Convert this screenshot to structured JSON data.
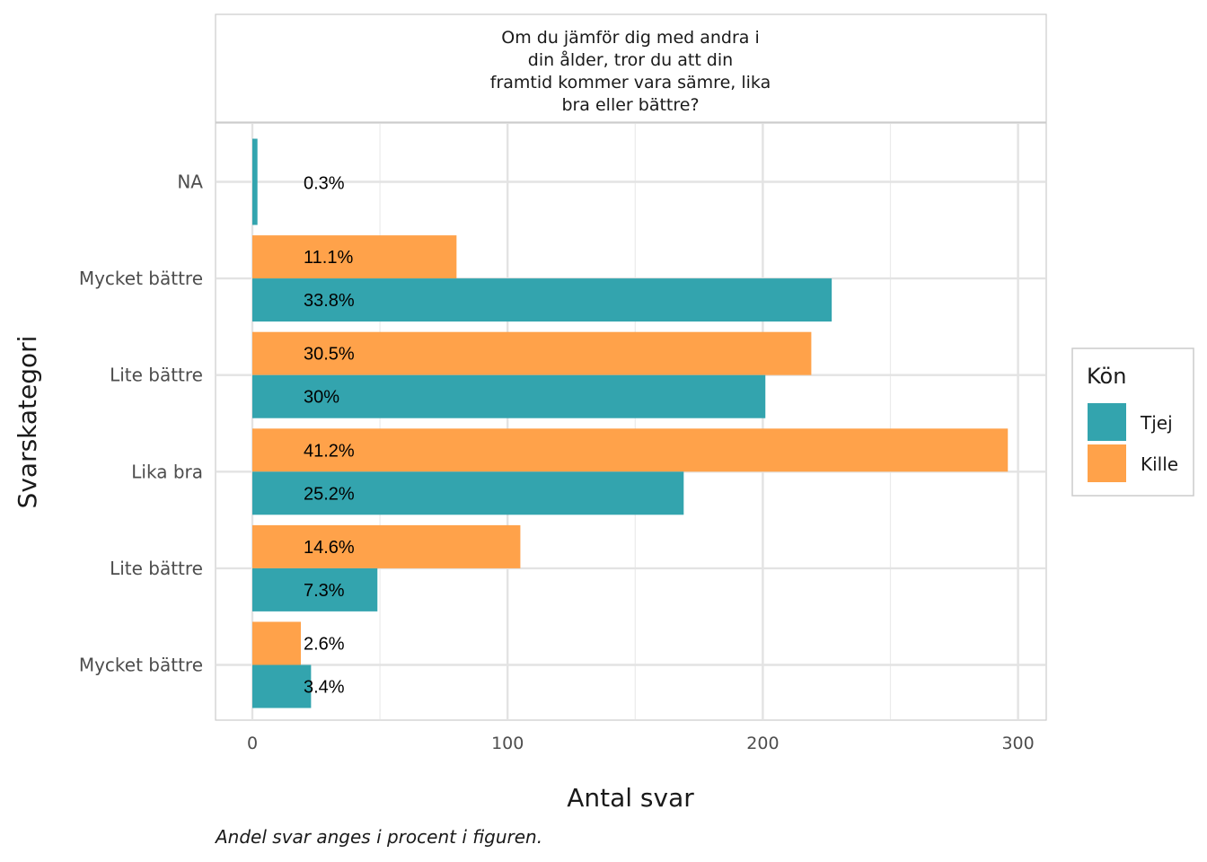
{
  "chart_data": {
    "type": "bar",
    "orientation": "horizontal",
    "facet_title": [
      "Om du jämför dig med andra i",
      "din ålder, tror du att din",
      "framtid kommer vara sämre, lika",
      "bra eller bättre?"
    ],
    "xlabel": "Antal svar",
    "ylabel": "Svarskategori",
    "caption": "Andel svar anges i procent i figuren.",
    "xlim": [
      0,
      310
    ],
    "xticks": [
      0,
      100,
      200,
      300
    ],
    "xtick_labels": [
      "0",
      "100",
      "200",
      "300"
    ],
    "grid": true,
    "legend_position": "right",
    "legend": {
      "title": "Kön",
      "entries": [
        {
          "name": "Tjej",
          "color": "#33A4AE"
        },
        {
          "name": "Kille",
          "color": "#FFA24A"
        }
      ]
    },
    "categories": [
      "NA",
      "Mycket bättre",
      "Lite bättre",
      "Lika bra",
      "Lite bättre",
      "Mycket bättre"
    ],
    "series": [
      {
        "name": "Kille",
        "color": "#FFA24A",
        "values": [
          null,
          80,
          219,
          296,
          105,
          19
        ],
        "labels": [
          "",
          "11.1%",
          "30.5%",
          "41.2%",
          "14.6%",
          "2.6%"
        ]
      },
      {
        "name": "Tjej",
        "color": "#33A4AE",
        "values": [
          2,
          227,
          201,
          169,
          49,
          23
        ],
        "labels": [
          "0.3%",
          "33.8%",
          "30%",
          "25.2%",
          "7.3%",
          "3.4%"
        ]
      }
    ]
  }
}
